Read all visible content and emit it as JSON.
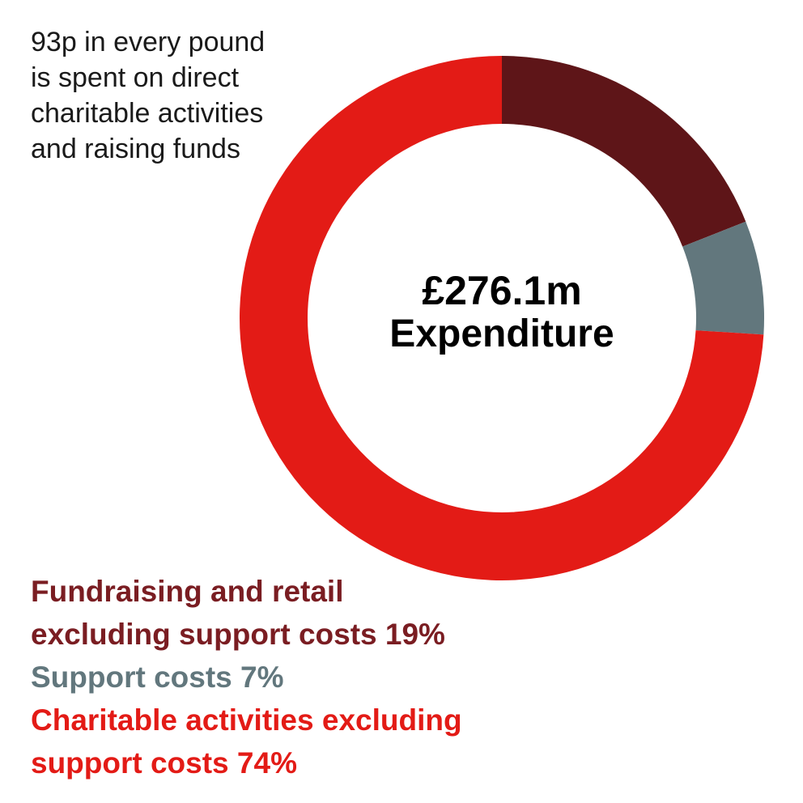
{
  "intro": {
    "lines": [
      "93p in every pound",
      "is spent on direct",
      "charitable activities",
      "and raising funds"
    ]
  },
  "center": {
    "amount": "£276.1m",
    "caption": "Expenditure"
  },
  "chart_data": {
    "type": "pie",
    "donut": true,
    "title": "",
    "slices": [
      {
        "label": "Fundraising and retail excluding support costs",
        "value": 19,
        "color": "#5e1518",
        "legend_color": "#7a1d22",
        "legend_lines": [
          "Fundraising and retail",
          "excluding support costs 19%"
        ]
      },
      {
        "label": "Support costs",
        "value": 7,
        "color": "#62777d",
        "legend_color": "#62777d",
        "legend_lines": [
          "Support costs 7%"
        ]
      },
      {
        "label": "Charitable activities excluding support costs",
        "value": 74,
        "color": "#e31b16",
        "legend_color": "#e31b16",
        "legend_lines": [
          "Charitable activities excluding",
          "support costs 74%"
        ]
      }
    ]
  }
}
